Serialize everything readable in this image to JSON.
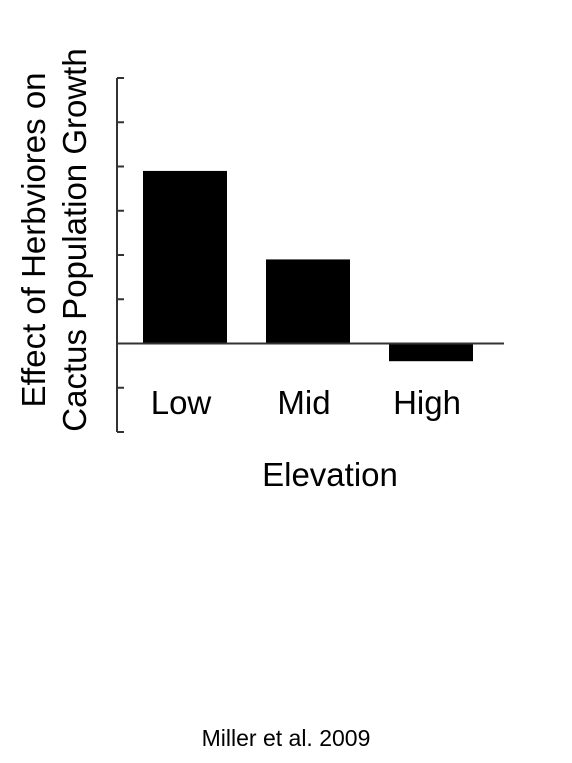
{
  "chart_data": {
    "type": "bar",
    "categories": [
      "Low",
      "Mid",
      "High"
    ],
    "values": [
      3.9,
      1.9,
      -0.4
    ],
    "ylim": [
      -2,
      6
    ],
    "ytick_step": 1,
    "xlabel": "Elevation",
    "ylabel_lines": [
      "Effect of Herbviores on",
      "Cactus Population Growth"
    ],
    "ytick_labels_shown": false,
    "grid": false,
    "bar_color": "#000000"
  },
  "citation": "Miller et al. 2009"
}
